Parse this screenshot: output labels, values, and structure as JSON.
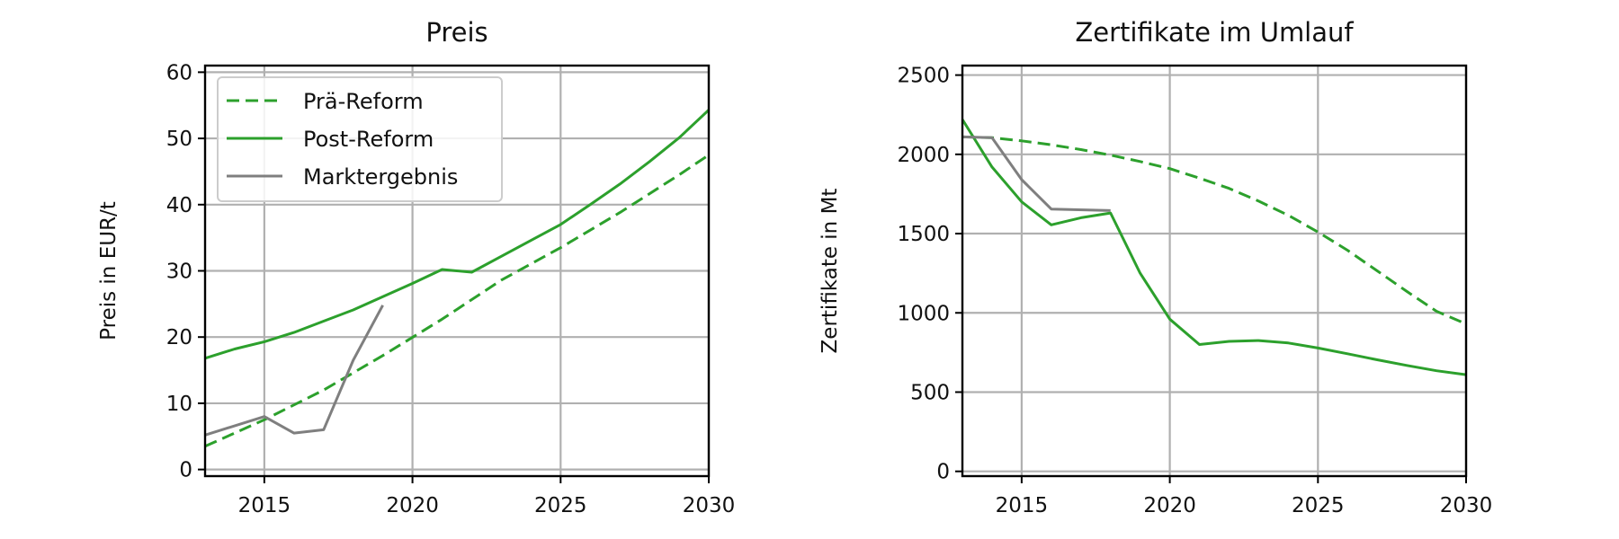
{
  "colors": {
    "pre_reform": "#2ca02c",
    "post_reform": "#2ca02c",
    "market": "#7f7f7f",
    "grid": "#b0b0b0"
  },
  "chart_data": [
    {
      "type": "line",
      "title": "Preis",
      "xlabel": "",
      "ylabel": "Preis in EUR/t",
      "xlim": [
        2013,
        2030
      ],
      "ylim": [
        -1,
        61
      ],
      "xticks": [
        2015,
        2020,
        2025,
        2030
      ],
      "yticks": [
        0,
        10,
        20,
        30,
        40,
        50,
        60
      ],
      "grid": true,
      "legend": {
        "position": "top-left",
        "entries": [
          "Prä-Reform",
          "Post-Reform",
          "Marktergebnis"
        ]
      },
      "series": [
        {
          "name": "Prä-Reform",
          "style": "dashed",
          "color": "#2ca02c",
          "x": [
            2013,
            2015,
            2017,
            2019,
            2021,
            2023,
            2025,
            2027,
            2029,
            2030
          ],
          "y": [
            3.5,
            7.5,
            12.0,
            17.2,
            22.7,
            28.6,
            33.5,
            38.8,
            44.5,
            47.5
          ]
        },
        {
          "name": "Post-Reform",
          "style": "solid",
          "color": "#2ca02c",
          "x": [
            2013,
            2014,
            2015,
            2016,
            2017,
            2018,
            2019,
            2020,
            2021,
            2022,
            2023,
            2024,
            2025,
            2026,
            2027,
            2028,
            2029,
            2030
          ],
          "y": [
            16.8,
            18.2,
            19.3,
            20.7,
            22.4,
            24.1,
            26.1,
            28.1,
            30.2,
            29.8,
            32.2,
            34.6,
            37.0,
            40.0,
            43.1,
            46.5,
            50.1,
            54.3
          ]
        },
        {
          "name": "Marktergebnis",
          "style": "solid",
          "color": "#7f7f7f",
          "x": [
            2013,
            2015,
            2016,
            2017,
            2018,
            2019
          ],
          "y": [
            5.2,
            8.0,
            5.5,
            6.0,
            16.5,
            24.8
          ]
        }
      ]
    },
    {
      "type": "line",
      "title": "Zertifikate im Umlauf",
      "xlabel": "",
      "ylabel": "Zertifikate in Mt",
      "xlim": [
        2013,
        2030
      ],
      "ylim": [
        -30,
        2560
      ],
      "xticks": [
        2015,
        2020,
        2025,
        2030
      ],
      "yticks": [
        0,
        500,
        1000,
        1500,
        2000,
        2500
      ],
      "grid": true,
      "series": [
        {
          "name": "Prä-Reform",
          "style": "dashed",
          "color": "#2ca02c",
          "x": [
            2013,
            2014,
            2015,
            2016,
            2017,
            2018,
            2019,
            2020,
            2021,
            2022,
            2023,
            2024,
            2025,
            2026,
            2027,
            2028,
            2029,
            2030
          ],
          "y": [
            2110,
            2105,
            2085,
            2060,
            2030,
            1995,
            1955,
            1910,
            1850,
            1785,
            1705,
            1615,
            1510,
            1395,
            1265,
            1135,
            1010,
            930
          ]
        },
        {
          "name": "Post-Reform",
          "style": "solid",
          "color": "#2ca02c",
          "x": [
            2013,
            2014,
            2015,
            2016,
            2017,
            2018,
            2019,
            2020,
            2021,
            2022,
            2023,
            2024,
            2025,
            2026,
            2027,
            2028,
            2029,
            2030
          ],
          "y": [
            2220,
            1920,
            1700,
            1555,
            1600,
            1630,
            1250,
            960,
            800,
            820,
            825,
            810,
            778,
            742,
            704,
            668,
            635,
            610
          ]
        },
        {
          "name": "Marktergebnis",
          "style": "solid",
          "color": "#7f7f7f",
          "x": [
            2013,
            2014,
            2015,
            2016,
            2018
          ],
          "y": [
            2110,
            2105,
            1840,
            1655,
            1645
          ]
        }
      ]
    }
  ]
}
